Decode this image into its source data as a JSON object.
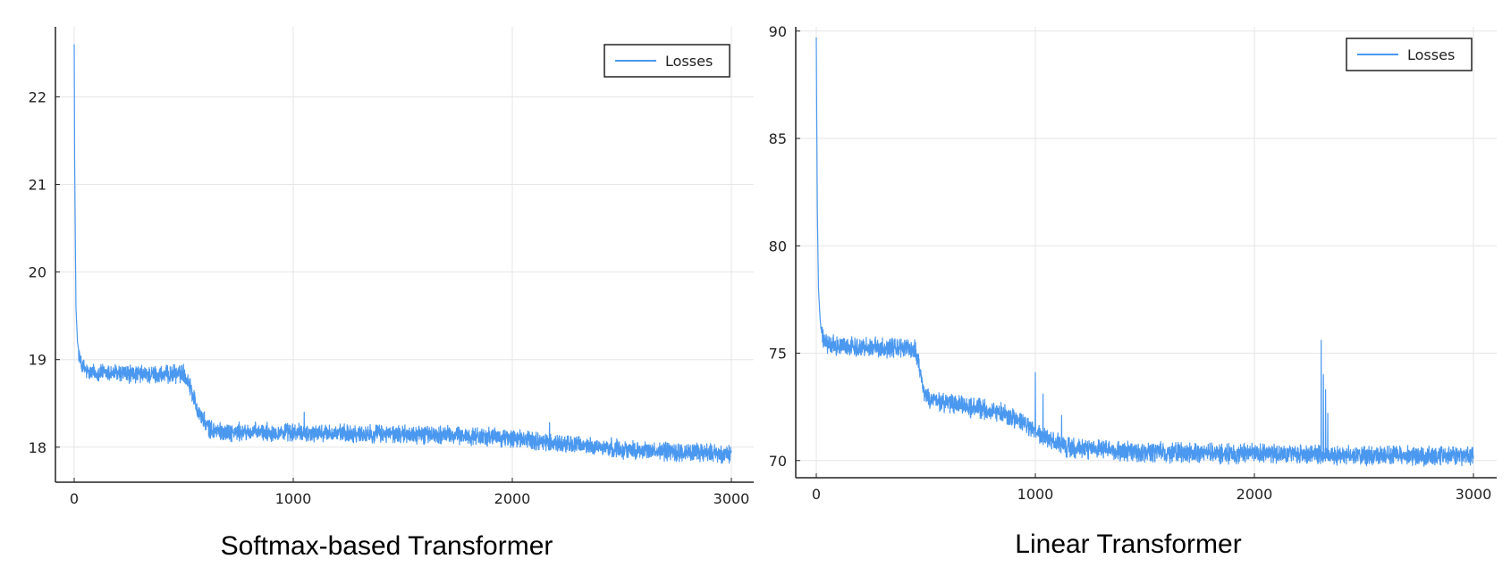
{
  "chart_data": [
    {
      "type": "line",
      "title": "Softmax-based Transformer",
      "xlim": [
        0,
        3000
      ],
      "ylim": [
        17.6,
        22.8
      ],
      "x_ticks": [
        0,
        1000,
        2000,
        3000
      ],
      "y_ticks": [
        18,
        19,
        20,
        21,
        22
      ],
      "grid": true,
      "legend_position": "top-right",
      "series": [
        {
          "name": "Losses",
          "color": "#4a98ef",
          "keypoints": [
            [
              0,
              22.6
            ],
            [
              2,
              21.3
            ],
            [
              5,
              20.4
            ],
            [
              8,
              19.6
            ],
            [
              15,
              19.2
            ],
            [
              30,
              18.95
            ],
            [
              60,
              18.85
            ],
            [
              150,
              18.85
            ],
            [
              300,
              18.83
            ],
            [
              420,
              18.82
            ],
            [
              500,
              18.85
            ],
            [
              530,
              18.7
            ],
            [
              560,
              18.45
            ],
            [
              590,
              18.3
            ],
            [
              620,
              18.2
            ],
            [
              700,
              18.17
            ],
            [
              900,
              18.17
            ],
            [
              1100,
              18.16
            ],
            [
              1400,
              18.15
            ],
            [
              1700,
              18.14
            ],
            [
              2000,
              18.1
            ],
            [
              2300,
              18.02
            ],
            [
              2600,
              17.96
            ],
            [
              3000,
              17.92
            ]
          ],
          "noise": 0.08,
          "spikes": [
            [
              1050,
              18.4
            ],
            [
              2170,
              18.28
            ]
          ]
        }
      ]
    },
    {
      "type": "line",
      "title": "Linear Transformer",
      "xlim": [
        0,
        3000
      ],
      "ylim": [
        69.2,
        90.2
      ],
      "x_ticks": [
        0,
        1000,
        2000,
        3000
      ],
      "y_ticks": [
        70,
        75,
        80,
        85,
        90
      ],
      "grid": true,
      "legend_position": "top-right",
      "series": [
        {
          "name": "Losses",
          "color": "#4a98ef",
          "keypoints": [
            [
              0,
              89.7
            ],
            [
              2,
              86.0
            ],
            [
              5,
              81.5
            ],
            [
              10,
              78.0
            ],
            [
              18,
              76.5
            ],
            [
              30,
              75.6
            ],
            [
              60,
              75.35
            ],
            [
              200,
              75.3
            ],
            [
              350,
              75.25
            ],
            [
              450,
              75.2
            ],
            [
              470,
              74.5
            ],
            [
              490,
              73.2
            ],
            [
              520,
              72.8
            ],
            [
              700,
              72.5
            ],
            [
              850,
              72.2
            ],
            [
              950,
              71.7
            ],
            [
              1050,
              71.0
            ],
            [
              1150,
              70.6
            ],
            [
              1400,
              70.4
            ],
            [
              1800,
              70.35
            ],
            [
              2200,
              70.3
            ],
            [
              2400,
              70.25
            ],
            [
              3000,
              70.2
            ]
          ],
          "noise": 0.35,
          "spikes": [
            [
              1000,
              74.1
            ],
            [
              1035,
              73.1
            ],
            [
              1120,
              72.1
            ],
            [
              2305,
              75.6
            ],
            [
              2315,
              74.0
            ],
            [
              2325,
              73.3
            ],
            [
              2335,
              72.2
            ]
          ]
        }
      ]
    }
  ]
}
